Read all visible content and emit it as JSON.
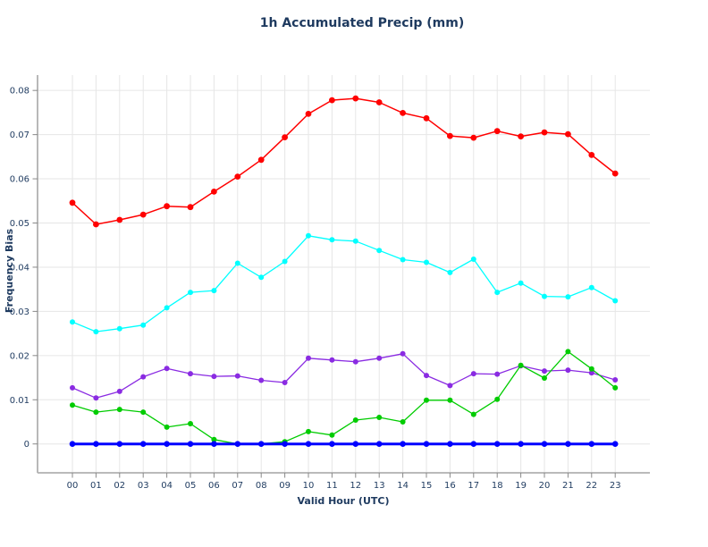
{
  "chart_data": {
    "type": "line",
    "title": "1h Accumulated Precip (mm)",
    "xlabel": "Valid Hour (UTC)",
    "ylabel": "Frequency Bias",
    "categories": [
      "00",
      "01",
      "02",
      "03",
      "04",
      "05",
      "06",
      "07",
      "08",
      "09",
      "10",
      "11",
      "12",
      "13",
      "14",
      "15",
      "16",
      "17",
      "18",
      "19",
      "20",
      "21",
      "22",
      "23"
    ],
    "y_tick_labels": [
      "0",
      "0.01",
      "0.02",
      "0.03",
      "0.04",
      "0.05",
      "0.06",
      "0.07",
      "0.08"
    ],
    "ylim": [
      0,
      0.08
    ],
    "grid": true,
    "legend": "none",
    "series": [
      {
        "name": "red-series",
        "color": "#ff0000",
        "values": [
          0.0546,
          0.0497,
          0.0507,
          0.0519,
          0.0538,
          0.0536,
          0.0571,
          0.0605,
          0.0643,
          0.0694,
          0.0747,
          0.0778,
          0.0782,
          0.0773,
          0.0749,
          0.0737,
          0.0697,
          0.0693,
          0.0708,
          0.0696,
          0.0705,
          0.0701,
          0.0654,
          0.0612
        ]
      },
      {
        "name": "cyan-series",
        "color": "#00ffff",
        "values": [
          0.0276,
          0.0254,
          0.0261,
          0.0269,
          0.0308,
          0.0343,
          0.0347,
          0.0409,
          0.0377,
          0.0413,
          0.0471,
          0.0462,
          0.0459,
          0.0438,
          0.0417,
          0.0411,
          0.0388,
          0.0418,
          0.0343,
          0.0364,
          0.0334,
          0.0333,
          0.0354,
          0.0324
        ]
      },
      {
        "name": "purple-series",
        "color": "#8a2be2",
        "values": [
          0.0127,
          0.0104,
          0.0119,
          0.0152,
          0.0171,
          0.0159,
          0.0153,
          0.0154,
          0.0144,
          0.0139,
          0.0194,
          0.019,
          0.0186,
          0.0194,
          0.0204,
          0.0155,
          0.0132,
          0.0159,
          0.0158,
          0.0177,
          0.0165,
          0.0167,
          0.0161,
          0.0145
        ]
      },
      {
        "name": "green-series",
        "color": "#00cc00",
        "values": [
          0.0088,
          0.0072,
          0.0078,
          0.0072,
          0.0038,
          0.0046,
          0.001,
          0.0,
          0.0,
          0.0005,
          0.0028,
          0.002,
          0.0054,
          0.006,
          0.005,
          0.0099,
          0.0099,
          0.0067,
          0.0101,
          0.0178,
          0.0149,
          0.0209,
          0.017,
          0.0127
        ]
      },
      {
        "name": "blue-series",
        "color": "#0000ff",
        "values": [
          0,
          0,
          0,
          0,
          0,
          0,
          0,
          0,
          0,
          0,
          0,
          0,
          0,
          0,
          0,
          0,
          0,
          0,
          0,
          0,
          0,
          0,
          0,
          0
        ]
      }
    ]
  },
  "colors": {
    "text": "#1e3a5f",
    "grid": "#e6e6e6",
    "spine": "#b0b0b0",
    "tick": "#888888",
    "background": "#ffffff"
  }
}
